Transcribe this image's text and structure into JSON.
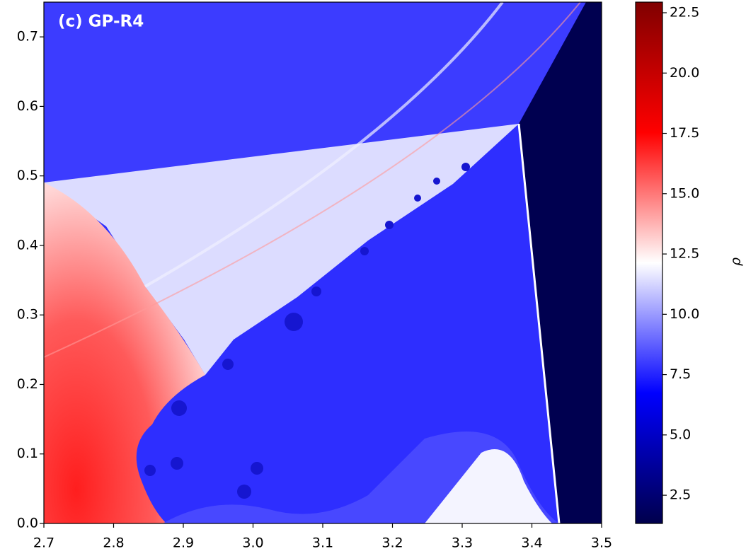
{
  "chart_data": {
    "type": "heatmap",
    "title": "(c) GP-R4",
    "xlim": [
      2.7,
      3.5
    ],
    "xticks": [
      2.7,
      2.8,
      2.9,
      {
        "value": 3.0,
        "label": "3.0"
      },
      3.1,
      3.2,
      3.3,
      3.4,
      3.5
    ],
    "ylim": [
      0,
      0.75
    ],
    "yticks": [
      {
        "value": 0,
        "label": "0.0"
      },
      0.1,
      0.2,
      0.3,
      0.4,
      0.5,
      0.6,
      0.7
    ],
    "colormap": "seismic",
    "clim": [
      1.33,
      22.94
    ],
    "cticks": [
      2.5,
      {
        "value": 5,
        "label": "5.0"
      },
      7.5,
      {
        "value": 10,
        "label": "10.0"
      },
      12.5,
      {
        "value": 15,
        "label": "15.0"
      },
      17.5,
      {
        "value": 20,
        "label": "20.0"
      },
      22.5
    ],
    "colorbar_label": "ρ"
  }
}
